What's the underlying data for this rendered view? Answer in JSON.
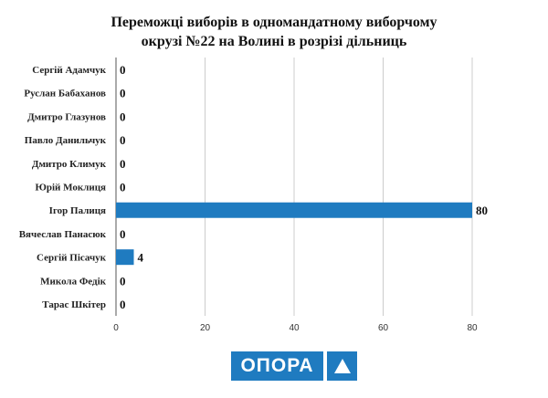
{
  "chart_data": {
    "type": "bar",
    "orientation": "horizontal",
    "title_lines": [
      "Переможці виборів в одномандатному виборчому",
      "окрузі №22 на Волині в розрізі дільниць"
    ],
    "categories": [
      "Сергій Адамчук",
      "Руслан Бабаханов",
      "Дмитро Глазунов",
      "Павло Данильчук",
      "Дмитро Климук",
      "Юрій Моклиця",
      "Ігор Палиця",
      "Вячеслав Панасюк",
      "Сергій Пісачук",
      "Микола Федік",
      "Тарас Шкітер"
    ],
    "values": [
      0,
      0,
      0,
      0,
      0,
      0,
      80,
      0,
      4,
      0,
      0
    ],
    "xlim": [
      0,
      80
    ],
    "xticks": [
      0,
      20,
      40,
      60,
      80
    ],
    "grid": true,
    "bar_color": "#1f7bc0",
    "gridline_color": "#cccccc"
  },
  "logo": {
    "text": "ОПОРА",
    "color": "#1f7bc0"
  }
}
